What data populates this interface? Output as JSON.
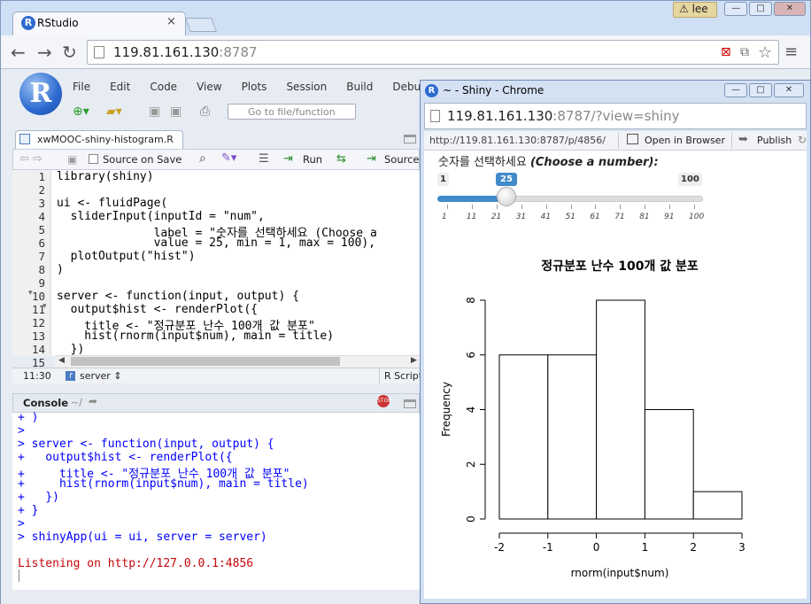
{
  "browser": {
    "tab_title": "RStudio",
    "tab_close": "×",
    "user_name": "lee",
    "url_host": "119.81.161.130",
    "url_port": ":8787",
    "win_min": "—",
    "win_max": "□",
    "win_close": "✕"
  },
  "rstudio": {
    "logo": "R",
    "menu": [
      "File",
      "Edit",
      "Code",
      "View",
      "Plots",
      "Session",
      "Build",
      "Debug"
    ],
    "goto_placeholder": "Go to file/function",
    "editor_tab": "xwMOOC-shiny-histogram.R",
    "editor_tab_close": "×",
    "source_on_save": "Source on Save",
    "run_label": "Run",
    "source_label": "Source",
    "code_lines": [
      "library(shiny)",
      "",
      "ui <- fluidPage(",
      "  sliderInput(inputId = \"num\",",
      "              label = \"숫자를 선택하세요 (Choose a",
      "              value = 25, min = 1, max = 100),",
      "  plotOutput(\"hist\")",
      ")",
      "",
      "server <- function(input, output) {",
      "  output$hist <- renderPlot({",
      "    title <- \"정규분포 난수 100개 값 분포\"",
      "    hist(rnorm(input$num), main = title)",
      "  })",
      ""
    ],
    "line_numbers": [
      "1",
      "2",
      "3",
      "4",
      "5",
      "6",
      "7",
      "8",
      "9",
      "10",
      "11",
      "12",
      "13",
      "14",
      "15"
    ],
    "cursor_pos": "11:30",
    "scope": "server",
    "file_type": "R Script",
    "console_title": "Console",
    "console_path": "~/",
    "console_lines": [
      "+ )",
      ">",
      "> server <- function(input, output) {",
      "+   output$hist <- renderPlot({",
      "+     title <- \"정규분포 난수 100개 값 분포\"",
      "+     hist(rnorm(input$num), main = title)",
      "+   })",
      "+ }",
      ">",
      "> shinyApp(ui = ui, server = server)",
      "",
      "Listening on http://127.0.0.1:4856"
    ]
  },
  "shiny": {
    "window_title": "~ - Shiny - Chrome",
    "url_host": "119.81.161.130",
    "url_rest": ":8787/?view=shiny",
    "inner_url": "http://119.81.161.130:8787/p/4856/",
    "open_in_browser": "Open in Browser",
    "publish": "Publish",
    "slider_label_ko": "숫자를 선택하세요 ",
    "slider_label_en": "(Choose a number):",
    "slider_min": "1",
    "slider_max": "100",
    "slider_value_label": "25",
    "slider_value": 25,
    "slider_ticks": [
      "1",
      "11",
      "21",
      "31",
      "41",
      "51",
      "61",
      "71",
      "81",
      "91",
      "100"
    ]
  },
  "chart_data": {
    "type": "bar",
    "title": "정규분포 난수 100개 값 분포",
    "xlabel": "rnorm(input$num)",
    "ylabel": "Frequency",
    "bins": [
      [
        -2,
        -1
      ],
      [
        -1,
        0
      ],
      [
        0,
        1
      ],
      [
        1,
        2
      ],
      [
        2,
        3
      ]
    ],
    "values": [
      6,
      6,
      8,
      4,
      1
    ],
    "xticks": [
      "-2",
      "-1",
      "0",
      "1",
      "2",
      "3"
    ],
    "yticks": [
      "0",
      "2",
      "4",
      "6",
      "8"
    ],
    "xlim": [
      -2,
      3
    ],
    "ylim": [
      0,
      8
    ]
  }
}
